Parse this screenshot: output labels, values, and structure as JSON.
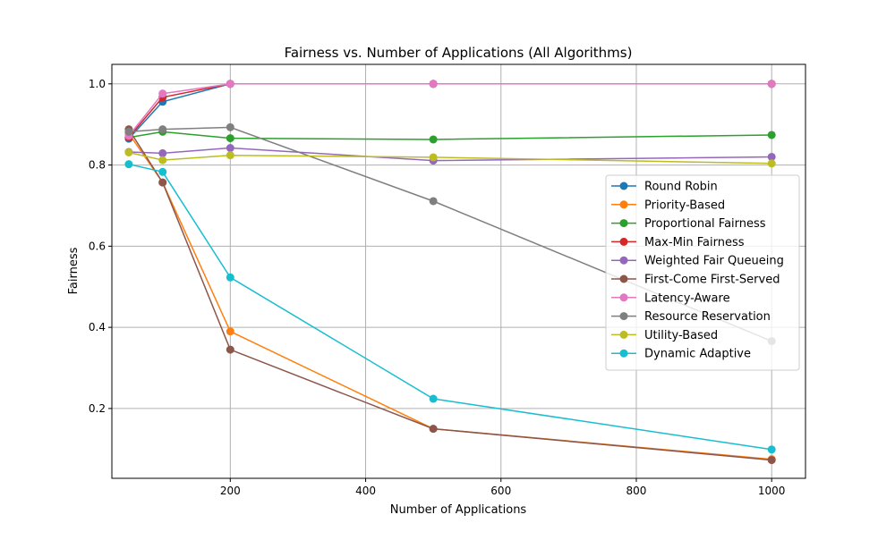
{
  "chart_data": {
    "type": "line",
    "title": "Fairness vs. Number of Applications (All Algorithms)",
    "xlabel": "Number of Applications",
    "ylabel": "Fairness",
    "xlim": [
      25,
      1050
    ],
    "ylim": [
      0.028,
      1.048
    ],
    "xticks": [
      200,
      400,
      600,
      800,
      1000
    ],
    "yticks": [
      0.2,
      0.4,
      0.6,
      0.8,
      1.0
    ],
    "xtick_labels": [
      "200",
      "400",
      "600",
      "800",
      "1000"
    ],
    "ytick_labels": [
      "0.2",
      "0.4",
      "0.6",
      "0.8",
      "1.0"
    ],
    "grid": true,
    "legend_position": "center-right",
    "x": [
      50,
      100,
      200,
      500,
      1000
    ],
    "series": [
      {
        "name": "Round Robin",
        "color": "#1f77b4",
        "values": [
          0.865,
          0.956,
          1.0,
          1.0,
          1.0
        ]
      },
      {
        "name": "Priority-Based",
        "color": "#ff7f0e",
        "values": [
          0.878,
          0.757,
          0.39,
          0.15,
          0.075
        ]
      },
      {
        "name": "Proportional Fairness",
        "color": "#2ca02c",
        "values": [
          0.868,
          0.882,
          0.866,
          0.863,
          0.874
        ]
      },
      {
        "name": "Max-Min Fairness",
        "color": "#d62728",
        "values": [
          0.868,
          0.967,
          1.0,
          1.0,
          1.0
        ]
      },
      {
        "name": "Weighted Fair Queueing",
        "color": "#9467bd",
        "values": [
          0.832,
          0.829,
          0.842,
          0.811,
          0.82
        ]
      },
      {
        "name": "First-Come First-Served",
        "color": "#8c564b",
        "values": [
          0.888,
          0.757,
          0.345,
          0.15,
          0.073
        ]
      },
      {
        "name": "Latency-Aware",
        "color": "#e377c2",
        "values": [
          0.872,
          0.976,
          1.0,
          1.0,
          1.0
        ]
      },
      {
        "name": "Resource Reservation",
        "color": "#7f7f7f",
        "values": [
          0.882,
          0.888,
          0.893,
          0.711,
          0.366
        ]
      },
      {
        "name": "Utility-Based",
        "color": "#bcbd22",
        "values": [
          0.831,
          0.812,
          0.824,
          0.819,
          0.804
        ]
      },
      {
        "name": "Dynamic Adaptive",
        "color": "#17becf",
        "values": [
          0.802,
          0.783,
          0.523,
          0.224,
          0.099
        ]
      }
    ]
  }
}
